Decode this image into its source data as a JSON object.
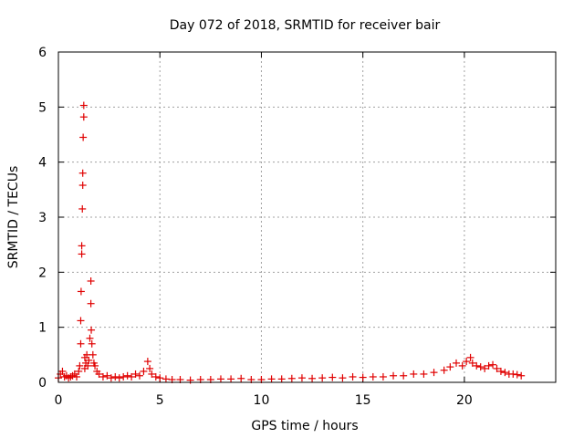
{
  "colors": {
    "series": "#e00000",
    "axis": "#000000",
    "grid": "#a0a0a0",
    "background": "#ffffff"
  },
  "chart_data": {
    "type": "scatter",
    "title": "Day 072 of 2018, SRMTID for receiver bair",
    "xlabel": "GPS time / hours",
    "ylabel": "SRMTID / TECUs",
    "xlim": [
      0,
      24.5
    ],
    "ylim": [
      0,
      6
    ],
    "xticks": [
      0,
      5,
      10,
      15,
      20
    ],
    "xtick_labels": [
      "0",
      "5",
      "10",
      "15",
      "20"
    ],
    "yticks": [
      0,
      1,
      2,
      3,
      4,
      5,
      6
    ],
    "ytick_labels": [
      "0",
      "1",
      "2",
      "3",
      "4",
      "5",
      "6"
    ],
    "grid": true,
    "marker": "+",
    "series": [
      {
        "name": "SRMTID",
        "x": [
          0.0,
          0.1,
          0.2,
          0.3,
          0.4,
          0.5,
          0.6,
          0.7,
          0.8,
          0.9,
          1.0,
          1.05,
          1.1,
          1.1,
          1.12,
          1.15,
          1.15,
          1.18,
          1.2,
          1.2,
          1.22,
          1.25,
          1.25,
          1.3,
          1.3,
          1.35,
          1.4,
          1.45,
          1.5,
          1.55,
          1.6,
          1.6,
          1.62,
          1.65,
          1.7,
          1.75,
          1.8,
          1.9,
          2.0,
          2.2,
          2.4,
          2.6,
          2.8,
          3.0,
          3.2,
          3.4,
          3.6,
          3.8,
          4.0,
          4.2,
          4.4,
          4.5,
          4.6,
          4.8,
          5.0,
          5.3,
          5.6,
          6.0,
          6.5,
          7.0,
          7.5,
          8.0,
          8.5,
          9.0,
          9.5,
          10.0,
          10.5,
          11.0,
          11.5,
          12.0,
          12.5,
          13.0,
          13.5,
          14.0,
          14.5,
          15.0,
          15.5,
          16.0,
          16.5,
          17.0,
          17.5,
          18.0,
          18.5,
          19.0,
          19.3,
          19.6,
          19.9,
          20.1,
          20.3,
          20.4,
          20.6,
          20.8,
          21.0,
          21.2,
          21.4,
          21.6,
          21.8,
          22.0,
          22.2,
          22.4,
          22.6,
          22.8
        ],
        "y": [
          0.08,
          0.15,
          0.2,
          0.1,
          0.12,
          0.08,
          0.1,
          0.12,
          0.15,
          0.1,
          0.2,
          0.3,
          0.7,
          1.12,
          1.65,
          2.33,
          2.48,
          3.15,
          3.58,
          3.8,
          4.45,
          4.82,
          5.03,
          0.45,
          0.25,
          0.35,
          0.5,
          0.3,
          0.4,
          0.8,
          1.43,
          1.84,
          0.95,
          0.7,
          0.5,
          0.35,
          0.3,
          0.2,
          0.15,
          0.1,
          0.12,
          0.08,
          0.1,
          0.08,
          0.1,
          0.12,
          0.1,
          0.15,
          0.12,
          0.2,
          0.38,
          0.25,
          0.15,
          0.1,
          0.08,
          0.06,
          0.05,
          0.05,
          0.04,
          0.05,
          0.05,
          0.06,
          0.06,
          0.07,
          0.05,
          0.05,
          0.06,
          0.06,
          0.07,
          0.08,
          0.07,
          0.08,
          0.09,
          0.08,
          0.1,
          0.09,
          0.1,
          0.1,
          0.12,
          0.12,
          0.15,
          0.15,
          0.18,
          0.22,
          0.28,
          0.35,
          0.3,
          0.38,
          0.45,
          0.35,
          0.3,
          0.28,
          0.25,
          0.3,
          0.32,
          0.25,
          0.2,
          0.18,
          0.15,
          0.15,
          0.14,
          0.12
        ]
      }
    ]
  }
}
